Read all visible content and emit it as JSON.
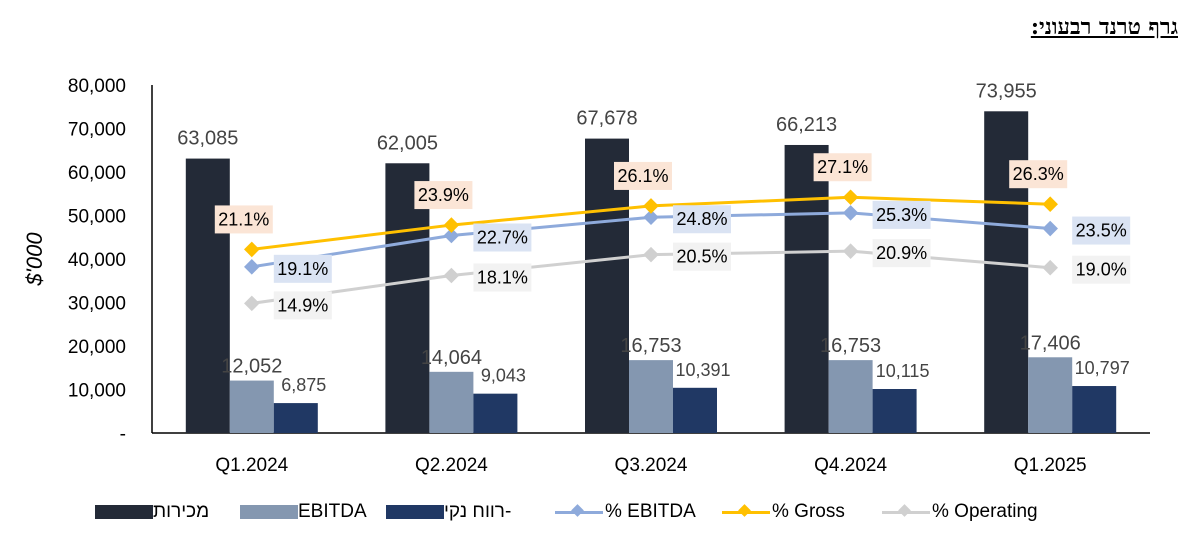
{
  "page": {
    "heading": "גרף טרנד רבעוני:"
  },
  "chart_data": {
    "type": "bar",
    "ylabel": "$'000",
    "ylim": [
      0,
      80000
    ],
    "yticks": [
      {
        "value": 0,
        "label": "-"
      },
      {
        "value": 10000,
        "label": "10,000"
      },
      {
        "value": 20000,
        "label": "20,000"
      },
      {
        "value": 30000,
        "label": "30,000"
      },
      {
        "value": 40000,
        "label": "40,000"
      },
      {
        "value": 50000,
        "label": "50,000"
      },
      {
        "value": 60000,
        "label": "60,000"
      },
      {
        "value": 70000,
        "label": "70,000"
      },
      {
        "value": 80000,
        "label": "80,000"
      }
    ],
    "categories": [
      "Q1.2024",
      "Q2.2024",
      "Q3.2024",
      "Q4.2024",
      "Q1.2025"
    ],
    "bar_series": [
      {
        "name": "מכירות",
        "color": "#232a37",
        "values": [
          63085,
          62005,
          67678,
          66213,
          73955
        ],
        "labels": [
          "63,085",
          "62,005",
          "67,678",
          "66,213",
          "73,955"
        ]
      },
      {
        "name": "EBITDA",
        "color": "#8497b0",
        "values": [
          12052,
          14064,
          16753,
          16753,
          17406
        ],
        "labels": [
          "12,052",
          "14,064",
          "16,753",
          "16,753",
          "17,406"
        ]
      },
      {
        "name": "רווח נקי-",
        "color": "#203864",
        "values": [
          6875,
          9043,
          10391,
          10115,
          10797
        ],
        "labels": [
          "6,875",
          "9,043",
          "10,391",
          "10,115",
          "10,797"
        ]
      }
    ],
    "line_series": [
      {
        "name": "% EBITDA",
        "color": "#8eaadb",
        "label_bg": "#dae3f3",
        "values": [
          19.1,
          22.7,
          24.8,
          25.3,
          23.5
        ],
        "labels": [
          "19.1%",
          "22.7%",
          "24.8%",
          "25.3%",
          "23.5%"
        ]
      },
      {
        "name": "% Gross",
        "color": "#ffc000",
        "label_bg": "#fbe5d6",
        "values": [
          21.1,
          23.9,
          26.1,
          27.1,
          26.3
        ],
        "labels": [
          "21.1%",
          "23.9%",
          "26.1%",
          "27.1%",
          "26.3%"
        ]
      },
      {
        "name": "% Operating",
        "color": "#d0d0d0",
        "label_bg": "#f2f2f2",
        "values": [
          14.9,
          18.1,
          20.5,
          20.9,
          19.0
        ],
        "labels": [
          "14.9%",
          "18.1%",
          "20.5%",
          "20.9%",
          "19.0%"
        ]
      }
    ],
    "legend_position": "bottom",
    "grid": false
  }
}
